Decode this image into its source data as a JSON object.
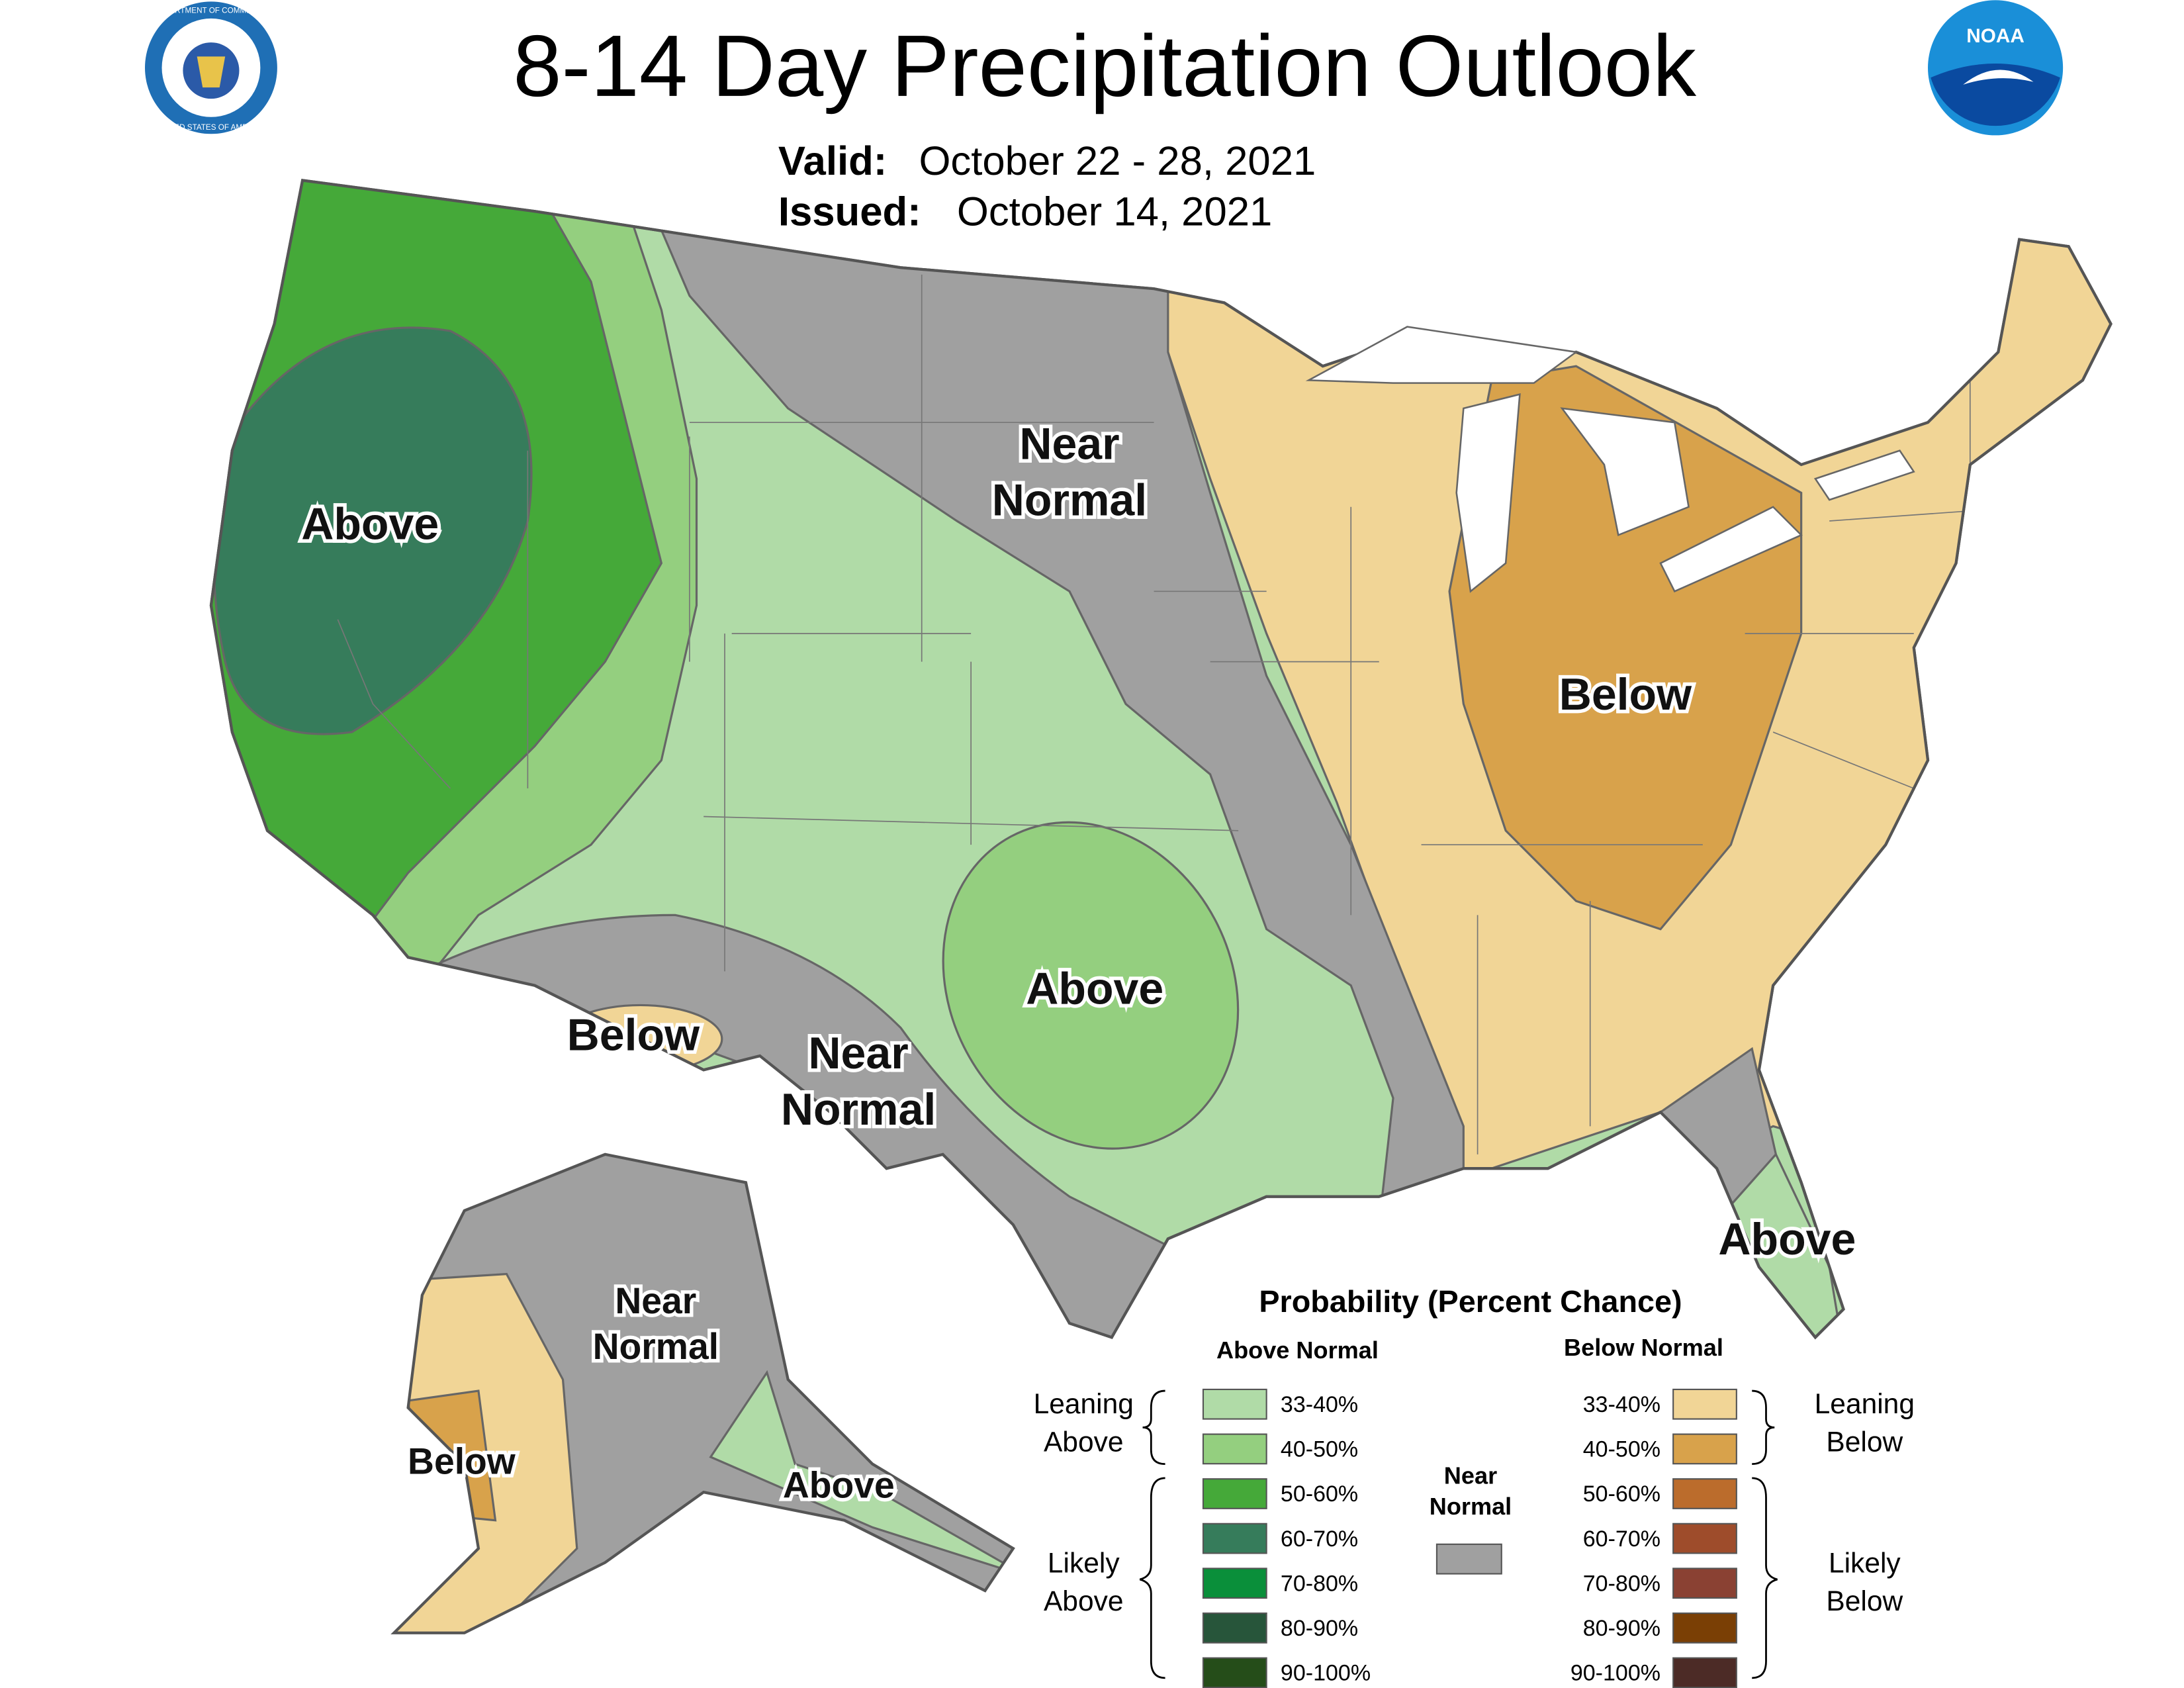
{
  "header": {
    "title": "8-14 Day Precipitation Outlook",
    "valid_label": "Valid:",
    "valid_dates": "October 22 - 28, 2021",
    "issued_label": "Issued:",
    "issued_date": "October 14, 2021"
  },
  "logos": {
    "commerce_top": "DEPARTMENT OF COMMERCE",
    "commerce_bottom": "UNITED STATES OF AMERICA",
    "noaa": "NOAA"
  },
  "map_labels": [
    {
      "lines": [
        "Above"
      ]
    },
    {
      "lines": [
        "Near",
        "Normal"
      ]
    },
    {
      "lines": [
        "Below"
      ]
    },
    {
      "lines": [
        "Below"
      ]
    },
    {
      "lines": [
        "Near",
        "Normal"
      ]
    },
    {
      "lines": [
        "Above"
      ]
    },
    {
      "lines": [
        "Above"
      ]
    },
    {
      "lines": [
        "Near",
        "Normal"
      ]
    },
    {
      "lines": [
        "Below"
      ]
    },
    {
      "lines": [
        "Above"
      ]
    }
  ],
  "legend": {
    "title": "Probability (Percent Chance)",
    "above_heading": "Above Normal",
    "below_heading": "Below Normal",
    "above_bins": [
      {
        "label": "33-40%",
        "color": "#b0dba7"
      },
      {
        "label": "40-50%",
        "color": "#94cf7f"
      },
      {
        "label": "50-60%",
        "color": "#45a939"
      },
      {
        "label": "60-70%",
        "color": "#367c5b"
      },
      {
        "label": "70-80%",
        "color": "#0a8f3a"
      },
      {
        "label": "80-90%",
        "color": "#27553a"
      },
      {
        "label": "90-100%",
        "color": "#254d19"
      }
    ],
    "below_bins": [
      {
        "label": "33-40%",
        "color": "#f1d596"
      },
      {
        "label": "40-50%",
        "color": "#d8a24b"
      },
      {
        "label": "50-60%",
        "color": "#bb6c2c"
      },
      {
        "label": "60-70%",
        "color": "#9e4c2b"
      },
      {
        "label": "70-80%",
        "color": "#8a4133"
      },
      {
        "label": "80-90%",
        "color": "#7a3f05"
      },
      {
        "label": "90-100%",
        "color": "#4c2b26"
      }
    ],
    "near_normal": {
      "lines": [
        "Near",
        "Normal"
      ],
      "color": "#a0a0a0"
    },
    "leaning_above": [
      "Leaning",
      "Above"
    ],
    "likely_above": [
      "Likely",
      "Above"
    ],
    "leaning_below": [
      "Leaning",
      "Below"
    ],
    "likely_below": [
      "Likely",
      "Below"
    ]
  }
}
